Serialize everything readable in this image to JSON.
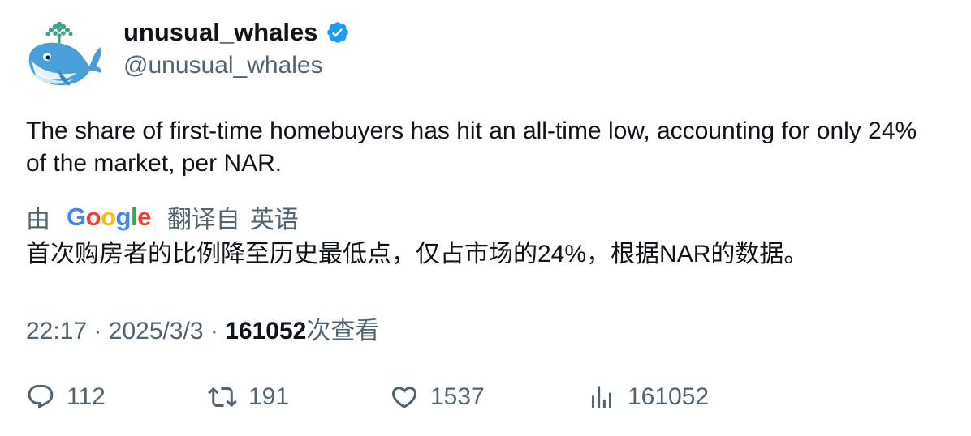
{
  "author": {
    "display_name": "unusual_whales",
    "handle": "@unusual_whales",
    "verified": true,
    "avatar_icon": "whale-avatar-icon",
    "verified_color": "#1d9bf0"
  },
  "tweet": {
    "text": "The share of first-time homebuyers has hit an all-time low, accounting for only 24% of the market, per NAR."
  },
  "translation": {
    "prefix": "由",
    "provider_letters": [
      "G",
      "o",
      "o",
      "g",
      "l",
      "e"
    ],
    "label": "翻译自",
    "source_language": "英语",
    "translated_text": "首次购房者的比例降至历史最低点，仅占市场的24%，根据NAR的数据。"
  },
  "meta": {
    "time": "22:17",
    "separator": "·",
    "date": "2025/3/3",
    "views_count": "161052",
    "views_label": "次查看"
  },
  "actions": {
    "replies": "112",
    "retweets": "191",
    "likes": "1537",
    "views": "161052"
  },
  "colors": {
    "text_primary": "#0f1419",
    "text_secondary": "#536471",
    "google_blue": "#4285F4",
    "google_red": "#EA4335",
    "google_yellow": "#FBBC05",
    "google_green": "#34A853"
  }
}
